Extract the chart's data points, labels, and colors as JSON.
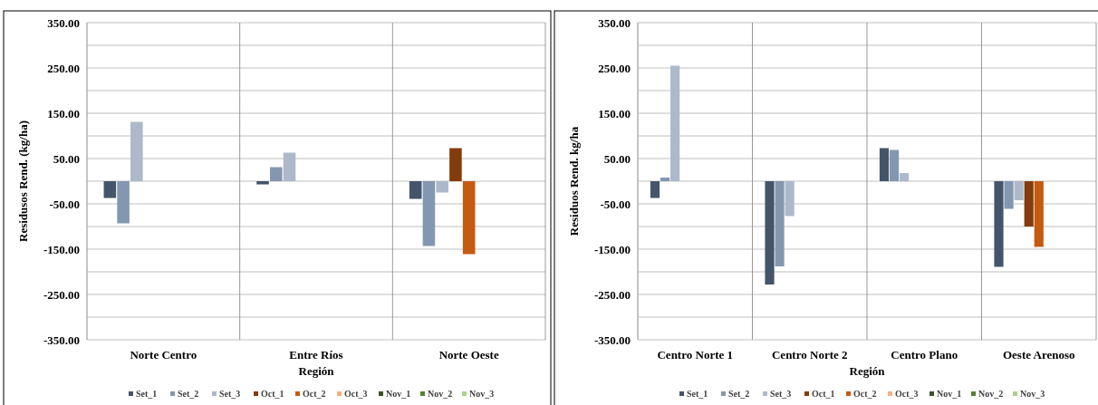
{
  "chart_data": [
    {
      "type": "bar",
      "xlabel": "Región",
      "ylabel": "Residusos Rend. (kg/ha)",
      "categories": [
        "Norte Centro",
        "Entre Ríos",
        "Norte Oeste"
      ],
      "ylim": [
        -350,
        350
      ],
      "yticks": [
        {
          "value": -350,
          "label": "-350.00"
        },
        {
          "value": -300,
          "label": null
        },
        {
          "value": -250,
          "label": "-250.00"
        },
        {
          "value": -200,
          "label": null
        },
        {
          "value": -150,
          "label": "-150.00"
        },
        {
          "value": -100,
          "label": null
        },
        {
          "value": -50,
          "label": "-50.00"
        },
        {
          "value": 0,
          "label": null
        },
        {
          "value": 50,
          "label": "50.00"
        },
        {
          "value": 100,
          "label": null
        },
        {
          "value": 150,
          "label": "150.00"
        },
        {
          "value": 200,
          "label": null
        },
        {
          "value": 250,
          "label": "250.00"
        },
        {
          "value": 300,
          "label": null
        },
        {
          "value": 350,
          "label": "350.00"
        }
      ],
      "grid": true,
      "legend": "bottom",
      "series": [
        {
          "name": "Set_1",
          "color": "#44546a",
          "values": [
            -37,
            -7,
            -39
          ]
        },
        {
          "name": "Set_2",
          "color": "#8497b0",
          "values": [
            -93,
            31,
            -143
          ]
        },
        {
          "name": "Set_3",
          "color": "#adb9ca",
          "values": [
            131,
            63,
            -25
          ]
        },
        {
          "name": "Oct_1",
          "color": "#843c0c",
          "values": [
            null,
            null,
            73
          ]
        },
        {
          "name": "Oct_2",
          "color": "#c55a11",
          "values": [
            null,
            null,
            -161
          ]
        },
        {
          "name": "Oct_3",
          "color": "#f4b183",
          "values": [
            null,
            null,
            null
          ]
        },
        {
          "name": "Nov_1",
          "color": "#375623",
          "values": [
            null,
            null,
            null
          ]
        },
        {
          "name": "Nov_2",
          "color": "#548235",
          "values": [
            null,
            null,
            null
          ]
        },
        {
          "name": "Nov_3",
          "color": "#a9d18e",
          "values": [
            null,
            null,
            null
          ]
        }
      ]
    },
    {
      "type": "bar",
      "xlabel": "Región",
      "ylabel": "Residuos Rend. kg/ha",
      "categories": [
        "Centro Norte 1",
        "Centro Norte 2",
        "Centro Plano",
        "Oeste Arenoso"
      ],
      "ylim": [
        -350,
        350
      ],
      "yticks": [
        {
          "value": -350,
          "label": "-350.00"
        },
        {
          "value": -300,
          "label": null
        },
        {
          "value": -250,
          "label": "-250.00"
        },
        {
          "value": -200,
          "label": null
        },
        {
          "value": -150,
          "label": "-150.00"
        },
        {
          "value": -100,
          "label": null
        },
        {
          "value": -50,
          "label": "-50.00"
        },
        {
          "value": 0,
          "label": null
        },
        {
          "value": 50,
          "label": "50.00"
        },
        {
          "value": 100,
          "label": null
        },
        {
          "value": 150,
          "label": "150.00"
        },
        {
          "value": 200,
          "label": null
        },
        {
          "value": 250,
          "label": "250.00"
        },
        {
          "value": 300,
          "label": null
        },
        {
          "value": 350,
          "label": "350.00"
        }
      ],
      "grid": true,
      "legend": "bottom",
      "series": [
        {
          "name": "Set_1",
          "color": "#44546a",
          "values": [
            -37,
            -228,
            73,
            -189
          ]
        },
        {
          "name": "Set_2",
          "color": "#8497b0",
          "values": [
            8,
            -188,
            69,
            -61
          ]
        },
        {
          "name": "Set_3",
          "color": "#adb9ca",
          "values": [
            255,
            -77,
            18,
            -42
          ]
        },
        {
          "name": "Oct_1",
          "color": "#843c0c",
          "values": [
            null,
            null,
            null,
            -100
          ]
        },
        {
          "name": "Oct_2",
          "color": "#c55a11",
          "values": [
            null,
            null,
            null,
            -145
          ]
        },
        {
          "name": "Oct_3",
          "color": "#f4b183",
          "values": [
            null,
            null,
            null,
            null
          ]
        },
        {
          "name": "Nov_1",
          "color": "#375623",
          "values": [
            null,
            null,
            null,
            null
          ]
        },
        {
          "name": "Nov_2",
          "color": "#548235",
          "values": [
            null,
            null,
            null,
            null
          ]
        },
        {
          "name": "Nov_3",
          "color": "#a9d18e",
          "values": [
            null,
            null,
            null,
            null
          ]
        }
      ]
    }
  ]
}
